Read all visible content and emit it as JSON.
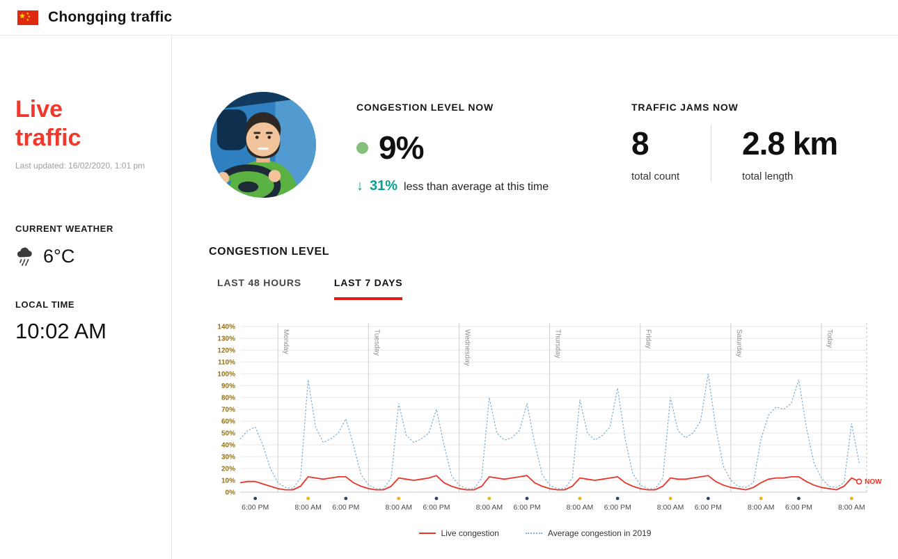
{
  "header": {
    "title": "Chongqing traffic"
  },
  "sidebar": {
    "title": "Live traffic",
    "last_updated": "Last updated: 16/02/2020, 1:01 pm",
    "weather_label": "CURRENT WEATHER",
    "temperature": "6°C",
    "local_time_label": "LOCAL TIME",
    "local_time": "10:02 AM"
  },
  "stats": {
    "congestion_label": "CONGESTION LEVEL NOW",
    "congestion_value": "9%",
    "delta_arrow": "↓",
    "delta_value": "31%",
    "delta_text": "less than average at this time",
    "jams_label": "TRAFFIC JAMS NOW",
    "jam_count": "8",
    "jam_count_label": "total count",
    "jam_length": "2.8 km",
    "jam_length_label": "total length"
  },
  "chart_section": {
    "title": "CONGESTION LEVEL",
    "tabs": [
      {
        "label": "LAST 48 HOURS"
      },
      {
        "label": "LAST 7 DAYS"
      }
    ],
    "active_tab": 1,
    "now_label": "NOW",
    "legend": [
      {
        "label": "Live congestion"
      },
      {
        "label": "Average congestion in 2019"
      }
    ]
  },
  "colors": {
    "accent_red": "#e8352a",
    "teal": "#089f8f",
    "green_dot": "#84c17b",
    "avg_blue": "#85b3d6",
    "tab_underline": "#e01f12"
  },
  "chart_data": {
    "type": "line",
    "title": "Congestion level — last 7 days",
    "x_description": "hours since chart start (Sunday afternoon), ending now at 10:02 AM today; values in % congestion",
    "ylim": [
      0,
      140
    ],
    "y_ticks": [
      "0%",
      "10%",
      "20%",
      "30%",
      "40%",
      "50%",
      "60%",
      "70%",
      "80%",
      "90%",
      "100%",
      "110%",
      "120%",
      "130%",
      "140%"
    ],
    "x": [
      0,
      2,
      4,
      6,
      8,
      10,
      12,
      14,
      16,
      18,
      20,
      22,
      24,
      26,
      28,
      30,
      32,
      34,
      36,
      38,
      40,
      42,
      44,
      46,
      48,
      50,
      52,
      54,
      56,
      58,
      60,
      62,
      64,
      66,
      68,
      70,
      72,
      74,
      76,
      78,
      80,
      82,
      84,
      86,
      88,
      90,
      92,
      94,
      96,
      98,
      100,
      102,
      104,
      106,
      108,
      110,
      112,
      114,
      116,
      118,
      120,
      122,
      124,
      126,
      128,
      130,
      132,
      134,
      136,
      138,
      140,
      142,
      144,
      146,
      148,
      150,
      152,
      154,
      156,
      158,
      160,
      162,
      164
    ],
    "series": [
      {
        "name": "Live congestion",
        "color": "#e8352a",
        "style": "solid",
        "values": [
          8,
          9,
          9,
          7,
          5,
          3,
          2,
          2,
          5,
          13,
          12,
          11,
          12,
          13,
          13,
          8,
          5,
          3,
          2,
          2,
          5,
          12,
          11,
          10,
          11,
          12,
          14,
          8,
          5,
          3,
          2,
          2,
          5,
          13,
          12,
          11,
          12,
          13,
          14,
          8,
          5,
          3,
          2,
          2,
          5,
          12,
          11,
          10,
          11,
          12,
          13,
          8,
          5,
          3,
          2,
          2,
          5,
          12,
          11,
          11,
          12,
          13,
          14,
          9,
          6,
          4,
          3,
          2,
          4,
          8,
          11,
          12,
          12,
          13,
          13,
          9,
          6,
          4,
          3,
          2,
          5,
          12,
          9
        ]
      },
      {
        "name": "Average congestion in 2019",
        "color": "#85b3d6",
        "style": "dotted",
        "values": [
          45,
          52,
          55,
          40,
          20,
          8,
          4,
          3,
          12,
          95,
          55,
          42,
          45,
          50,
          62,
          40,
          15,
          6,
          3,
          3,
          12,
          75,
          48,
          42,
          45,
          50,
          70,
          40,
          14,
          6,
          3,
          3,
          12,
          80,
          50,
          44,
          46,
          52,
          75,
          42,
          15,
          6,
          3,
          3,
          12,
          78,
          50,
          44,
          48,
          55,
          88,
          45,
          16,
          6,
          3,
          3,
          12,
          80,
          52,
          46,
          50,
          60,
          100,
          55,
          22,
          10,
          5,
          4,
          8,
          45,
          65,
          72,
          70,
          75,
          95,
          55,
          25,
          12,
          5,
          4,
          8,
          58,
          25
        ]
      }
    ],
    "day_boundaries": [
      {
        "hour": 10,
        "label": "Monday"
      },
      {
        "hour": 34,
        "label": "Tuesday"
      },
      {
        "hour": 58,
        "label": "Wednesday"
      },
      {
        "hour": 82,
        "label": "Thursday"
      },
      {
        "hour": 106,
        "label": "Friday"
      },
      {
        "hour": 130,
        "label": "Saturday"
      },
      {
        "hour": 154,
        "label": "Today"
      }
    ],
    "x_ticks": [
      {
        "hour": 4,
        "label": "6:00 PM"
      },
      {
        "hour": 18,
        "label": "8:00 AM"
      },
      {
        "hour": 28,
        "label": "6:00 PM"
      },
      {
        "hour": 42,
        "label": "8:00 AM"
      },
      {
        "hour": 52,
        "label": "6:00 PM"
      },
      {
        "hour": 66,
        "label": "8:00 AM"
      },
      {
        "hour": 76,
        "label": "6:00 PM"
      },
      {
        "hour": 90,
        "label": "8:00 AM"
      },
      {
        "hour": 100,
        "label": "6:00 PM"
      },
      {
        "hour": 114,
        "label": "8:00 AM"
      },
      {
        "hour": 124,
        "label": "6:00 PM"
      },
      {
        "hour": 138,
        "label": "8:00 AM"
      },
      {
        "hour": 148,
        "label": "6:00 PM"
      },
      {
        "hour": 162,
        "label": "8:00 AM"
      }
    ],
    "tick_dot_colors": {
      "6:00 PM": "#27486b",
      "8:00 AM": "#eeb21c"
    },
    "end_line_hour": 166,
    "now": {
      "x": 164,
      "value": 9,
      "label": "NOW"
    },
    "legend_position": "bottom-center",
    "grid": true
  }
}
